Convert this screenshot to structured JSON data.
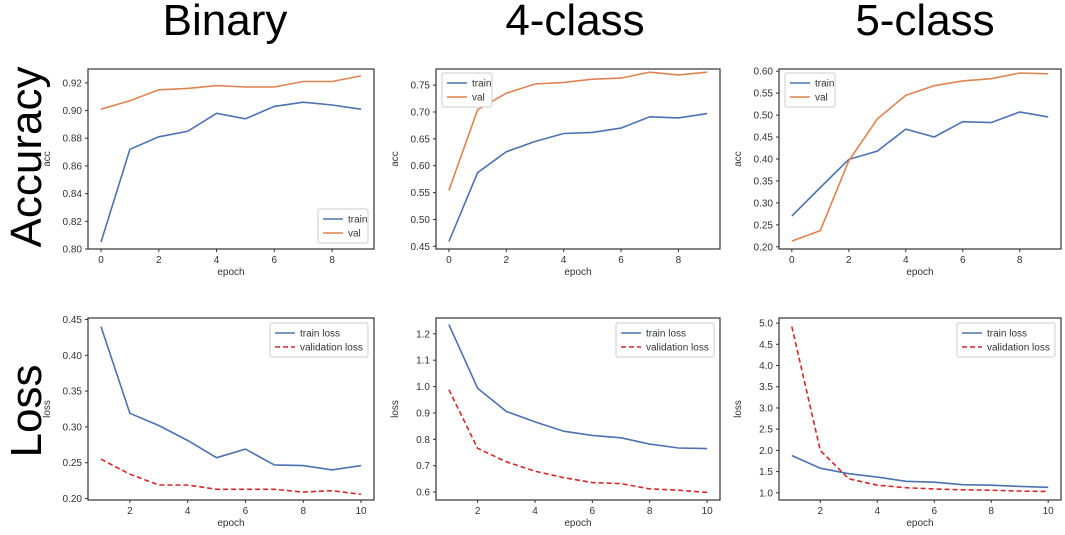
{
  "column_titles": [
    "Binary",
    "4-class",
    "5-class"
  ],
  "row_titles": [
    "Accuracy",
    "Loss"
  ],
  "colors": {
    "train": "#4c72b0",
    "val": "#dd8452",
    "val_loss": "#d62728"
  },
  "chart_data": [
    {
      "type": "line",
      "title": "",
      "xlabel": "epoch",
      "ylabel": "acc",
      "xlim": [
        -0.45,
        9.45
      ],
      "ylim": [
        0.8,
        0.93
      ],
      "xticks": [
        0,
        2,
        4,
        6,
        8
      ],
      "yticks": [
        0.8,
        0.82,
        0.84,
        0.86,
        0.88,
        0.9,
        0.92
      ],
      "ytick_labels": [
        "0.80",
        "0.82",
        "0.84",
        "0.86",
        "0.88",
        "0.90",
        "0.92"
      ],
      "x": [
        0,
        1,
        2,
        3,
        4,
        5,
        6,
        7,
        8,
        9
      ],
      "series": [
        {
          "name": "train",
          "values": [
            0.805,
            0.872,
            0.881,
            0.885,
            0.898,
            0.894,
            0.903,
            0.906,
            0.904,
            0.901
          ]
        },
        {
          "name": "val",
          "values": [
            0.901,
            0.907,
            0.915,
            0.916,
            0.918,
            0.917,
            0.917,
            0.921,
            0.921,
            0.925
          ]
        }
      ],
      "legend": "lower-right",
      "grid": false
    },
    {
      "type": "line",
      "title": "",
      "xlabel": "epoch",
      "ylabel": "acc",
      "xlim": [
        -0.45,
        9.45
      ],
      "ylim": [
        0.445,
        0.78
      ],
      "xticks": [
        0,
        2,
        4,
        6,
        8
      ],
      "yticks": [
        0.45,
        0.5,
        0.55,
        0.6,
        0.65,
        0.7,
        0.75
      ],
      "ytick_labels": [
        "0.45",
        "0.50",
        "0.55",
        "0.60",
        "0.65",
        "0.70",
        "0.75"
      ],
      "x": [
        0,
        1,
        2,
        3,
        4,
        5,
        6,
        7,
        8,
        9
      ],
      "series": [
        {
          "name": "train",
          "values": [
            0.459,
            0.587,
            0.626,
            0.645,
            0.66,
            0.662,
            0.67,
            0.691,
            0.689,
            0.697
          ]
        },
        {
          "name": "val",
          "values": [
            0.554,
            0.704,
            0.735,
            0.752,
            0.755,
            0.761,
            0.763,
            0.774,
            0.769,
            0.774
          ]
        }
      ],
      "legend": "upper-left",
      "grid": false
    },
    {
      "type": "line",
      "title": "",
      "xlabel": "epoch",
      "ylabel": "acc",
      "xlim": [
        -0.45,
        9.45
      ],
      "ylim": [
        0.195,
        0.605
      ],
      "xticks": [
        0,
        2,
        4,
        6,
        8
      ],
      "yticks": [
        0.2,
        0.25,
        0.3,
        0.35,
        0.4,
        0.45,
        0.5,
        0.55,
        0.6
      ],
      "ytick_labels": [
        "0.20",
        "0.25",
        "0.30",
        "0.35",
        "0.40",
        "0.45",
        "0.50",
        "0.55",
        "0.60"
      ],
      "x": [
        0,
        1,
        2,
        3,
        4,
        5,
        6,
        7,
        8,
        9
      ],
      "series": [
        {
          "name": "train",
          "values": [
            0.27,
            0.335,
            0.399,
            0.418,
            0.468,
            0.45,
            0.485,
            0.483,
            0.507,
            0.496
          ]
        },
        {
          "name": "val",
          "values": [
            0.213,
            0.237,
            0.396,
            0.491,
            0.545,
            0.567,
            0.578,
            0.583,
            0.596,
            0.594
          ]
        }
      ],
      "legend": "upper-left",
      "grid": false
    },
    {
      "type": "line",
      "title": "",
      "xlabel": "epoch",
      "ylabel": "loss",
      "xlim": [
        0.55,
        10.45
      ],
      "ylim": [
        0.198,
        0.452
      ],
      "xticks": [
        2,
        4,
        6,
        8,
        10
      ],
      "yticks": [
        0.2,
        0.25,
        0.3,
        0.35,
        0.4,
        0.45
      ],
      "ytick_labels": [
        "0.20",
        "0.25",
        "0.30",
        "0.35",
        "0.40",
        "0.45"
      ],
      "x": [
        1,
        2,
        3,
        4,
        5,
        6,
        7,
        8,
        9,
        10
      ],
      "series": [
        {
          "name": "train loss",
          "values": [
            0.44,
            0.319,
            0.302,
            0.281,
            0.257,
            0.269,
            0.247,
            0.246,
            0.24,
            0.246
          ]
        },
        {
          "name": "validation loss",
          "values": [
            0.255,
            0.234,
            0.219,
            0.219,
            0.213,
            0.213,
            0.213,
            0.209,
            0.211,
            0.206
          ]
        }
      ],
      "legend": "upper-right",
      "grid": false
    },
    {
      "type": "line",
      "title": "",
      "xlabel": "epoch",
      "ylabel": "loss",
      "xlim": [
        0.55,
        10.45
      ],
      "ylim": [
        0.57,
        1.26
      ],
      "xticks": [
        2,
        4,
        6,
        8,
        10
      ],
      "yticks": [
        0.6,
        0.7,
        0.8,
        0.9,
        1.0,
        1.1,
        1.2
      ],
      "ytick_labels": [
        "0.6",
        "0.7",
        "0.8",
        "0.9",
        "1.0",
        "1.1",
        "1.2"
      ],
      "x": [
        1,
        2,
        3,
        4,
        5,
        6,
        7,
        8,
        9,
        10
      ],
      "series": [
        {
          "name": "train loss",
          "values": [
            1.235,
            0.994,
            0.906,
            0.866,
            0.831,
            0.815,
            0.806,
            0.782,
            0.767,
            0.765
          ]
        },
        {
          "name": "validation loss",
          "values": [
            0.988,
            0.766,
            0.715,
            0.679,
            0.655,
            0.636,
            0.632,
            0.612,
            0.607,
            0.599
          ]
        }
      ],
      "legend": "upper-right",
      "grid": false
    },
    {
      "type": "line",
      "title": "",
      "xlabel": "epoch",
      "ylabel": "loss",
      "xlim": [
        0.55,
        10.45
      ],
      "ylim": [
        0.83,
        5.12
      ],
      "xticks": [
        2,
        4,
        6,
        8,
        10
      ],
      "yticks": [
        1.0,
        1.5,
        2.0,
        2.5,
        3.0,
        3.5,
        4.0,
        4.5,
        5.0
      ],
      "ytick_labels": [
        "1.0",
        "1.5",
        "2.0",
        "2.5",
        "3.0",
        "3.5",
        "4.0",
        "4.5",
        "5.0"
      ],
      "x": [
        1,
        2,
        3,
        4,
        5,
        6,
        7,
        8,
        9,
        10
      ],
      "series": [
        {
          "name": "train loss",
          "values": [
            1.88,
            1.58,
            1.45,
            1.37,
            1.27,
            1.25,
            1.19,
            1.18,
            1.15,
            1.13
          ]
        },
        {
          "name": "validation loss",
          "values": [
            4.92,
            2.0,
            1.33,
            1.18,
            1.12,
            1.09,
            1.07,
            1.06,
            1.04,
            1.03
          ]
        }
      ],
      "legend": "upper-right",
      "grid": false
    }
  ]
}
